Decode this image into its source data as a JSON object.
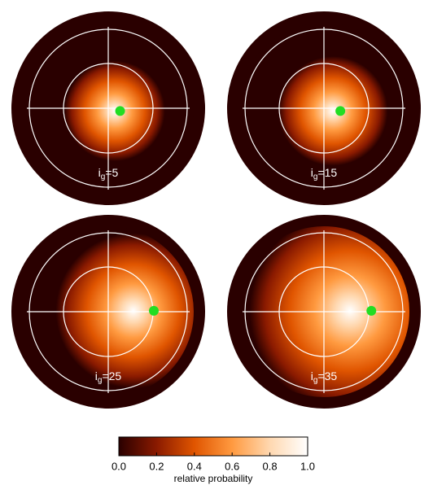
{
  "chart_data": {
    "type": "polar-heatmap",
    "panels": [
      {
        "label_symbol": "i",
        "label_sub": "g",
        "label_rest": "=5",
        "marker_x": 0.13,
        "marker_y": -0.03
      },
      {
        "label_symbol": "i",
        "label_sub": "g",
        "label_rest": "=15",
        "marker_x": 0.18,
        "marker_y": -0.03
      },
      {
        "label_symbol": "i",
        "label_sub": "g",
        "label_rest": "=25",
        "marker_x": 0.5,
        "marker_y": 0.01
      },
      {
        "label_symbol": "i",
        "label_sub": "g",
        "label_rest": "=35",
        "marker_x": 0.52,
        "marker_y": 0.01
      }
    ],
    "xlim": [
      -1,
      1
    ],
    "ylim": [
      -1,
      1
    ],
    "marker_color": "#22dd22",
    "colormap": [
      "#2a0000",
      "#8a1a00",
      "#e05500",
      "#ff9a40",
      "#ffd8b0",
      "#ffffff"
    ],
    "colorbar": {
      "label": "relative probability",
      "lim": [
        0,
        1
      ],
      "ticks": [
        {
          "value": 0,
          "label": "0.0"
        },
        {
          "value": 0.2,
          "label": "0.2"
        },
        {
          "value": 0.4,
          "label": "0.4"
        },
        {
          "value": 0.6,
          "label": "0.6"
        },
        {
          "value": 0.8,
          "label": "0.8"
        },
        {
          "value": 1,
          "label": "1.0"
        }
      ]
    }
  }
}
